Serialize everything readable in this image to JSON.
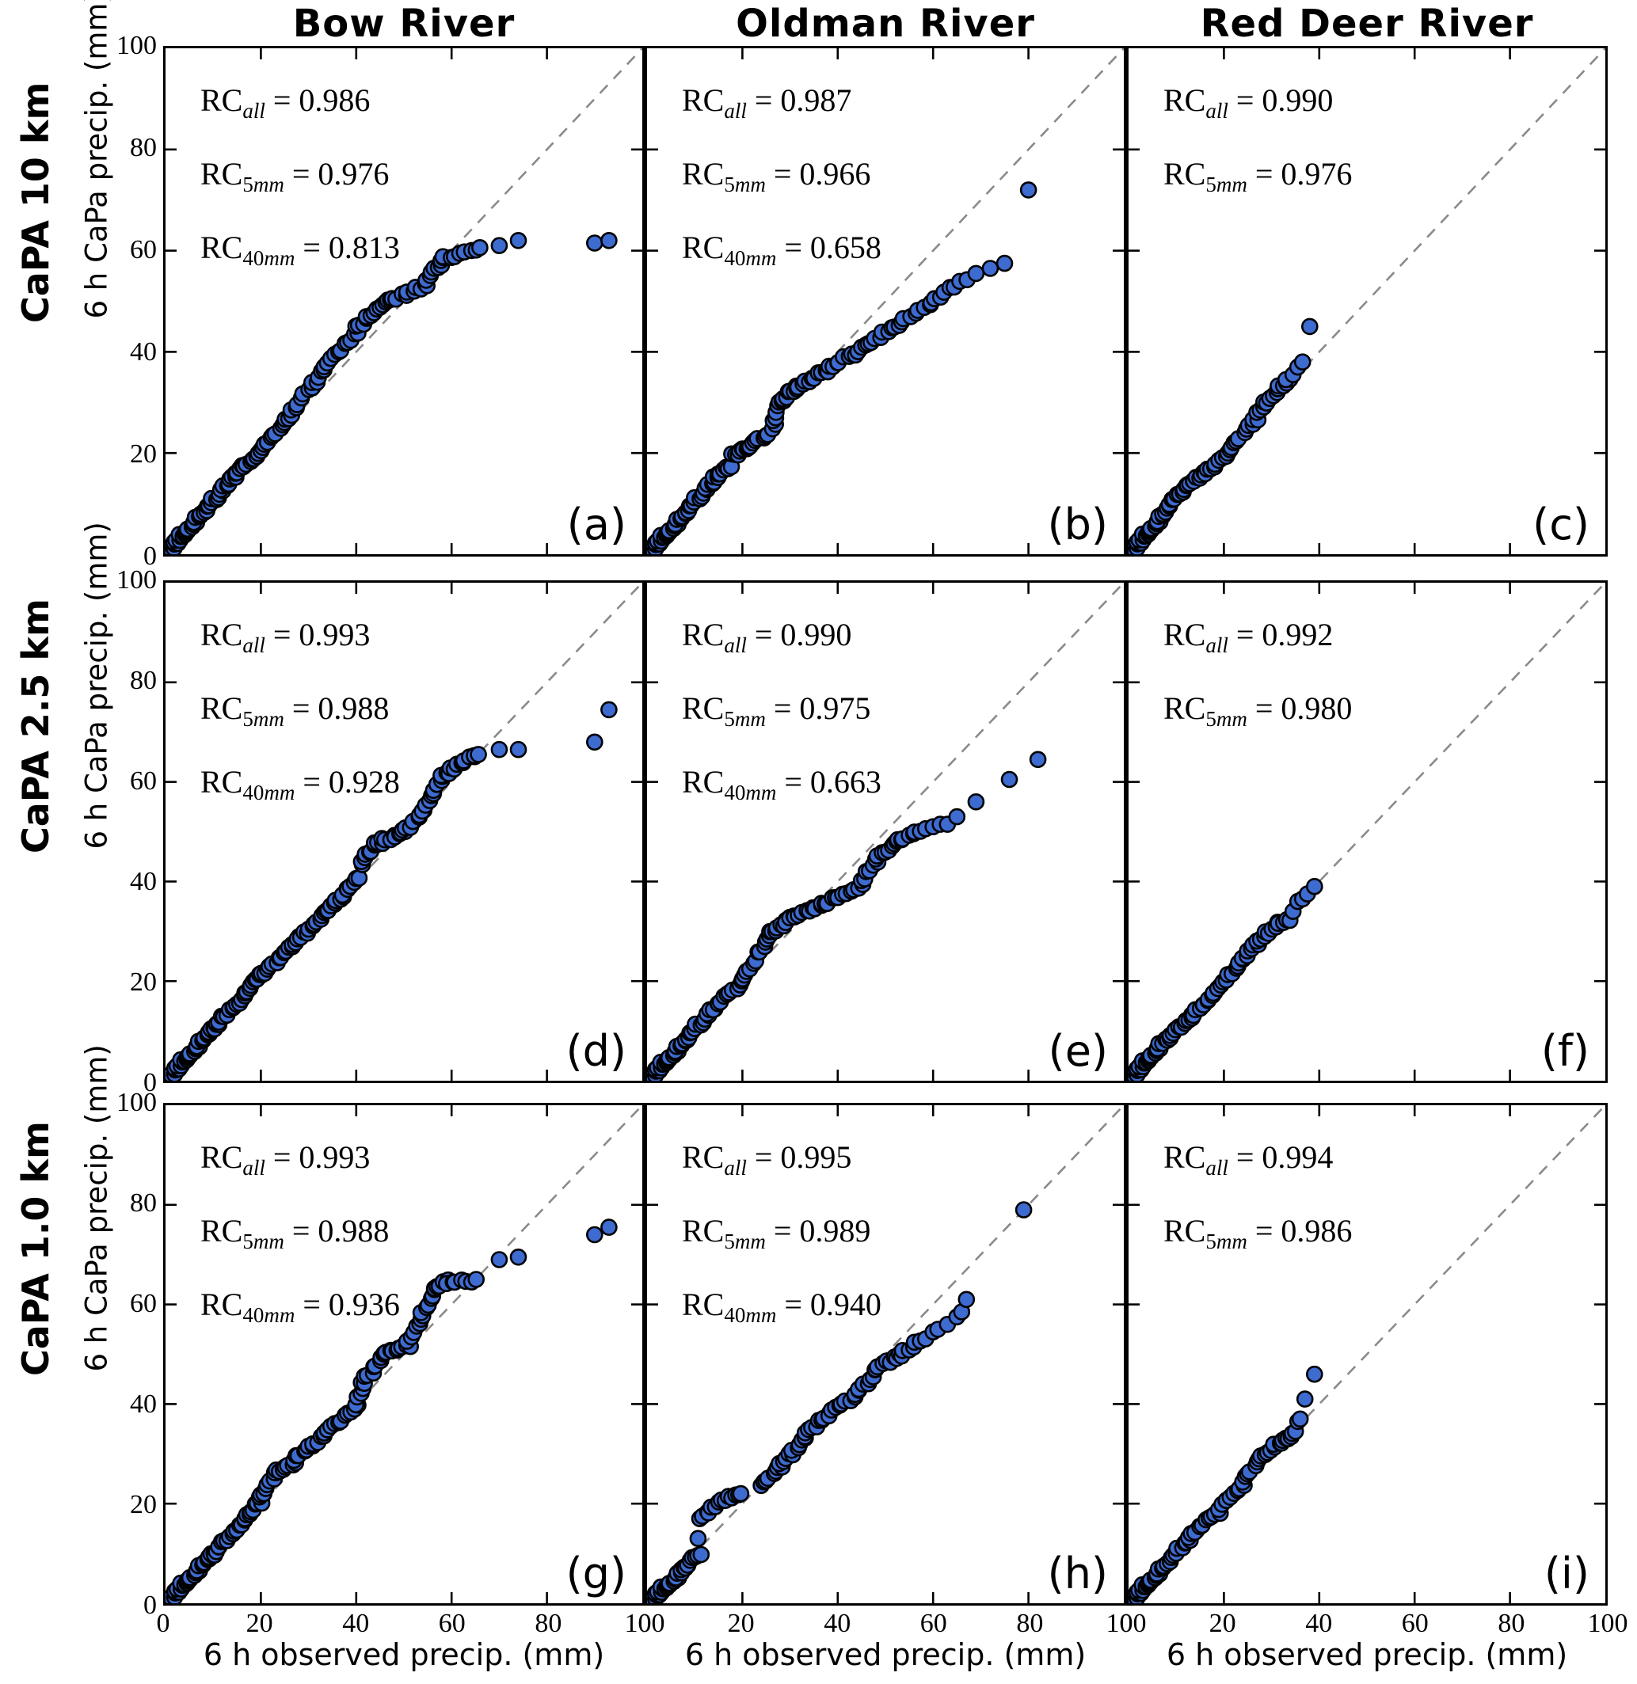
{
  "figure": {
    "column_titles": [
      "Bow River",
      "Oldman River",
      "Red Deer River"
    ],
    "row_labels": [
      "CaPA 10 km",
      "CaPA 2.5 km",
      "CaPA 1.0 km"
    ],
    "x_axis_label": "6 h observed precip. (mm)",
    "y_axis_label": "6 h CaPa precip. (mm)",
    "x_ticks": [
      0,
      20,
      40,
      60,
      80,
      100
    ],
    "y_ticks": [
      0,
      20,
      40,
      60,
      80,
      100
    ],
    "colors": {
      "marker_fill": "#3e6bd0",
      "marker_edge": "#000000",
      "identity_line": "#8a8a8a",
      "axis": "#000000",
      "background": "#ffffff",
      "text": "#000000"
    }
  },
  "chart_data": [
    {
      "type": "scatter",
      "panel_letter": "(a)",
      "river": "Bow River",
      "resolution": "CaPA 10 km",
      "xlim": [
        0,
        100
      ],
      "ylim": [
        0,
        100
      ],
      "identity_line": true,
      "rc": [
        {
          "label": "RC",
          "sub_num": "",
          "sub_letters": "all",
          "value": "0.986"
        },
        {
          "label": "RC",
          "sub_num": "5",
          "sub_letters": "mm",
          "value": "0.976"
        },
        {
          "label": "RC",
          "sub_num": "40",
          "sub_letters": "mm",
          "value": "0.813"
        }
      ],
      "runs": [
        [
          0,
          0,
          8,
          8.5,
          30
        ],
        [
          8,
          8.5,
          14,
          15,
          16
        ],
        [
          14,
          15,
          20,
          20.5,
          14
        ],
        [
          20,
          20.5,
          26,
          27,
          12
        ],
        [
          26,
          27.5,
          33,
          36,
          12
        ],
        [
          33,
          36.5,
          40,
          44,
          12
        ],
        [
          40,
          45,
          47,
          50,
          12
        ],
        [
          47,
          50,
          55,
          53.5,
          11
        ],
        [
          55,
          54.5,
          58.5,
          58.5,
          8
        ],
        [
          58.5,
          58.5,
          66,
          60.5,
          8
        ]
      ],
      "points": [
        [
          70,
          61
        ],
        [
          74,
          62
        ],
        [
          90,
          61.5
        ],
        [
          93,
          62
        ]
      ]
    },
    {
      "type": "scatter",
      "panel_letter": "(b)",
      "river": "Oldman River",
      "resolution": "CaPA 10 km",
      "xlim": [
        0,
        100
      ],
      "ylim": [
        0,
        100
      ],
      "identity_line": true,
      "rc": [
        {
          "label": "RC",
          "sub_num": "",
          "sub_letters": "all",
          "value": "0.987"
        },
        {
          "label": "RC",
          "sub_num": "5",
          "sub_letters": "mm",
          "value": "0.966"
        },
        {
          "label": "RC",
          "sub_num": "40",
          "sub_letters": "mm",
          "value": "0.658"
        }
      ],
      "runs": [
        [
          0,
          0,
          8,
          8,
          30
        ],
        [
          8,
          8.5,
          14,
          14.5,
          14
        ],
        [
          14,
          15,
          18,
          17.5,
          8
        ],
        [
          18,
          19.5,
          21,
          21,
          7
        ],
        [
          21,
          21,
          26,
          24.5,
          9
        ],
        [
          26.5,
          25.5,
          28,
          30,
          6
        ],
        [
          28,
          30,
          31,
          33,
          8
        ],
        [
          31,
          33,
          38,
          36.5,
          11
        ],
        [
          38,
          37,
          46,
          41,
          11
        ],
        [
          46,
          41.5,
          53,
          45.5,
          9
        ],
        [
          53,
          46,
          60,
          50,
          8
        ],
        [
          60,
          50.5,
          67,
          54.5,
          7
        ]
      ],
      "points": [
        [
          69,
          55.5
        ],
        [
          72,
          56.5
        ],
        [
          75,
          57.5
        ],
        [
          80,
          72
        ]
      ]
    },
    {
      "type": "scatter",
      "panel_letter": "(c)",
      "river": "Red Deer River",
      "resolution": "CaPA 10 km",
      "xlim": [
        0,
        100
      ],
      "ylim": [
        0,
        100
      ],
      "identity_line": true,
      "rc": [
        {
          "label": "RC",
          "sub_num": "",
          "sub_letters": "all",
          "value": "0.990"
        },
        {
          "label": "RC",
          "sub_num": "5",
          "sub_letters": "mm",
          "value": "0.976"
        }
      ],
      "runs": [
        [
          0,
          0,
          7,
          7.5,
          26
        ],
        [
          7,
          8,
          12,
          13.5,
          12
        ],
        [
          12,
          13.5,
          16,
          16,
          8
        ],
        [
          16,
          16,
          21,
          20,
          9
        ],
        [
          21,
          20.5,
          27,
          27,
          11
        ],
        [
          27,
          28,
          31,
          32,
          8
        ],
        [
          31,
          32.5,
          34,
          34.5,
          5
        ]
      ],
      "points": [
        [
          33,
          34.5
        ],
        [
          34.5,
          35.5
        ],
        [
          35.5,
          37
        ],
        [
          36.5,
          38
        ],
        [
          38,
          45
        ]
      ]
    },
    {
      "type": "scatter",
      "panel_letter": "(d)",
      "river": "Bow River",
      "resolution": "CaPA 2.5 km",
      "xlim": [
        0,
        100
      ],
      "ylim": [
        0,
        100
      ],
      "identity_line": true,
      "rc": [
        {
          "label": "RC",
          "sub_num": "",
          "sub_letters": "all",
          "value": "0.993"
        },
        {
          "label": "RC",
          "sub_num": "5",
          "sub_letters": "mm",
          "value": "0.988"
        },
        {
          "label": "RC",
          "sub_num": "40",
          "sub_letters": "mm",
          "value": "0.928"
        }
      ],
      "runs": [
        [
          0,
          0,
          10,
          10.5,
          34
        ],
        [
          10,
          10.5,
          20,
          21,
          22
        ],
        [
          20,
          21,
          28,
          28.5,
          16
        ],
        [
          28,
          28.5,
          35,
          35,
          14
        ],
        [
          35,
          35,
          40.5,
          41,
          12
        ],
        [
          41,
          43.5,
          44,
          47.5,
          8
        ],
        [
          44,
          47.5,
          50,
          50,
          11
        ],
        [
          50,
          50,
          54,
          54,
          8
        ],
        [
          54,
          54.5,
          58,
          61,
          9
        ],
        [
          58,
          61,
          62,
          64,
          7
        ],
        [
          62,
          64,
          66,
          65.5,
          6
        ]
      ],
      "points": [
        [
          70,
          66.5
        ],
        [
          74,
          66.5
        ],
        [
          90,
          68
        ],
        [
          93,
          74.5
        ]
      ]
    },
    {
      "type": "scatter",
      "panel_letter": "(e)",
      "river": "Oldman River",
      "resolution": "CaPA 2.5 km",
      "xlim": [
        0,
        100
      ],
      "ylim": [
        0,
        100
      ],
      "identity_line": true,
      "rc": [
        {
          "label": "RC",
          "sub_num": "",
          "sub_letters": "all",
          "value": "0.990"
        },
        {
          "label": "RC",
          "sub_num": "5",
          "sub_letters": "mm",
          "value": "0.975"
        },
        {
          "label": "RC",
          "sub_num": "40",
          "sub_letters": "mm",
          "value": "0.663"
        }
      ],
      "runs": [
        [
          0,
          0,
          8,
          8,
          30
        ],
        [
          8,
          8.5,
          14,
          14.5,
          13
        ],
        [
          14,
          14.5,
          20,
          20,
          11
        ],
        [
          20,
          20.5,
          23,
          24,
          6
        ],
        [
          23.5,
          25.5,
          26,
          30,
          7
        ],
        [
          26,
          30,
          30,
          32.5,
          8
        ],
        [
          30,
          32.5,
          37,
          35.5,
          11
        ],
        [
          37,
          35.5,
          45,
          39.5,
          11
        ],
        [
          45,
          40,
          48,
          44,
          6
        ],
        [
          48,
          44.5,
          53,
          48.5,
          9
        ],
        [
          53,
          48.5,
          58,
          50.5,
          7
        ]
      ],
      "points": [
        [
          60,
          51
        ],
        [
          61.5,
          51.5
        ],
        [
          63,
          51.5
        ],
        [
          65,
          53
        ],
        [
          69,
          56
        ],
        [
          76,
          60.5
        ],
        [
          82,
          64.5
        ]
      ]
    },
    {
      "type": "scatter",
      "panel_letter": "(f)",
      "river": "Red Deer River",
      "resolution": "CaPA 2.5 km",
      "xlim": [
        0,
        100
      ],
      "ylim": [
        0,
        100
      ],
      "identity_line": true,
      "rc": [
        {
          "label": "RC",
          "sub_num": "",
          "sub_letters": "all",
          "value": "0.992"
        },
        {
          "label": "RC",
          "sub_num": "5",
          "sub_letters": "mm",
          "value": "0.980"
        }
      ],
      "runs": [
        [
          0,
          0,
          7,
          7.5,
          26
        ],
        [
          7,
          7.5,
          13,
          13,
          13
        ],
        [
          13,
          13,
          18,
          17.5,
          10
        ],
        [
          18,
          18,
          23,
          23,
          9
        ],
        [
          23,
          23.5,
          27,
          27.5,
          8
        ],
        [
          27,
          28,
          31,
          31,
          7
        ],
        [
          31,
          31.5,
          34,
          32.5,
          5
        ]
      ],
      "points": [
        [
          34.5,
          34
        ],
        [
          35.5,
          36
        ],
        [
          36.5,
          36.5
        ],
        [
          37.5,
          37.5
        ],
        [
          39,
          39
        ]
      ]
    },
    {
      "type": "scatter",
      "panel_letter": "(g)",
      "river": "Bow River",
      "resolution": "CaPA 1.0 km",
      "xlim": [
        0,
        100
      ],
      "ylim": [
        0,
        100
      ],
      "identity_line": true,
      "rc": [
        {
          "label": "RC",
          "sub_num": "",
          "sub_letters": "all",
          "value": "0.993"
        },
        {
          "label": "RC",
          "sub_num": "5",
          "sub_letters": "mm",
          "value": "0.988"
        },
        {
          "label": "RC",
          "sub_num": "40",
          "sub_letters": "mm",
          "value": "0.936"
        }
      ],
      "runs": [
        [
          0,
          0,
          10,
          10,
          34
        ],
        [
          10,
          10,
          20,
          20.5,
          22
        ],
        [
          20,
          21,
          23,
          26,
          8
        ],
        [
          23,
          26,
          27,
          28.5,
          8
        ],
        [
          27,
          29,
          33,
          33.5,
          11
        ],
        [
          33,
          34,
          40,
          39.5,
          12
        ],
        [
          40,
          40,
          41.5,
          44,
          5
        ],
        [
          41.5,
          44.5,
          46,
          50,
          9
        ],
        [
          46,
          50.5,
          51,
          52,
          9
        ],
        [
          51,
          52.5,
          54,
          58,
          7
        ],
        [
          54,
          58.5,
          56.5,
          63,
          6
        ],
        [
          56.5,
          63.5,
          59,
          64.5,
          5
        ],
        [
          59,
          64.5,
          65,
          65,
          7
        ]
      ],
      "points": [
        [
          70,
          69
        ],
        [
          74,
          69.5
        ],
        [
          90,
          74
        ],
        [
          93,
          75.5
        ]
      ]
    },
    {
      "type": "scatter",
      "panel_letter": "(h)",
      "river": "Oldman River",
      "resolution": "CaPA 1.0 km",
      "xlim": [
        0,
        100
      ],
      "ylim": [
        0,
        100
      ],
      "identity_line": true,
      "rc": [
        {
          "label": "RC",
          "sub_num": "",
          "sub_letters": "all",
          "value": "0.995"
        },
        {
          "label": "RC",
          "sub_num": "5",
          "sub_letters": "mm",
          "value": "0.989"
        },
        {
          "label": "RC",
          "sub_num": "40",
          "sub_letters": "mm",
          "value": "0.940"
        }
      ],
      "runs": [
        [
          0,
          0,
          7,
          6,
          26
        ],
        [
          7,
          6.5,
          11,
          10,
          10
        ],
        [
          11,
          17,
          16,
          20.5,
          8
        ],
        [
          16.5,
          21,
          20,
          21.7,
          6
        ],
        [
          24,
          23.5,
          28,
          27.5,
          8
        ],
        [
          28,
          28,
          33,
          33,
          10
        ],
        [
          33,
          33.5,
          38,
          38,
          9
        ],
        [
          38,
          38,
          44,
          42,
          9
        ],
        [
          44,
          42.5,
          48,
          46.5,
          7
        ],
        [
          48,
          47,
          53,
          50,
          8
        ],
        [
          53,
          50,
          58,
          53,
          7
        ]
      ],
      "points": [
        [
          10.7,
          13
        ],
        [
          60,
          54.5
        ],
        [
          61,
          55
        ],
        [
          63,
          56
        ],
        [
          65,
          57.5
        ],
        [
          66,
          58.5
        ],
        [
          67,
          61
        ],
        [
          79,
          79
        ]
      ]
    },
    {
      "type": "scatter",
      "panel_letter": "(i)",
      "river": "Red Deer River",
      "resolution": "CaPA 1.0 km",
      "xlim": [
        0,
        100
      ],
      "ylim": [
        0,
        100
      ],
      "identity_line": true,
      "rc": [
        {
          "label": "RC",
          "sub_num": "",
          "sub_letters": "all",
          "value": "0.994"
        },
        {
          "label": "RC",
          "sub_num": "5",
          "sub_letters": "mm",
          "value": "0.986"
        }
      ],
      "runs": [
        [
          0,
          0,
          8,
          8,
          30
        ],
        [
          8,
          8,
          14,
          14.5,
          13
        ],
        [
          14,
          14.5,
          19,
          18.5,
          9
        ],
        [
          19,
          19,
          24,
          24,
          9
        ],
        [
          24,
          24.5,
          28,
          29.5,
          8
        ],
        [
          28,
          29.5,
          32,
          32.5,
          8
        ],
        [
          32,
          32.5,
          34.5,
          34,
          5
        ]
      ],
      "points": [
        [
          35,
          34.5
        ],
        [
          35.5,
          36.5
        ],
        [
          36,
          37
        ],
        [
          37,
          41
        ],
        [
          39,
          46
        ]
      ]
    }
  ]
}
